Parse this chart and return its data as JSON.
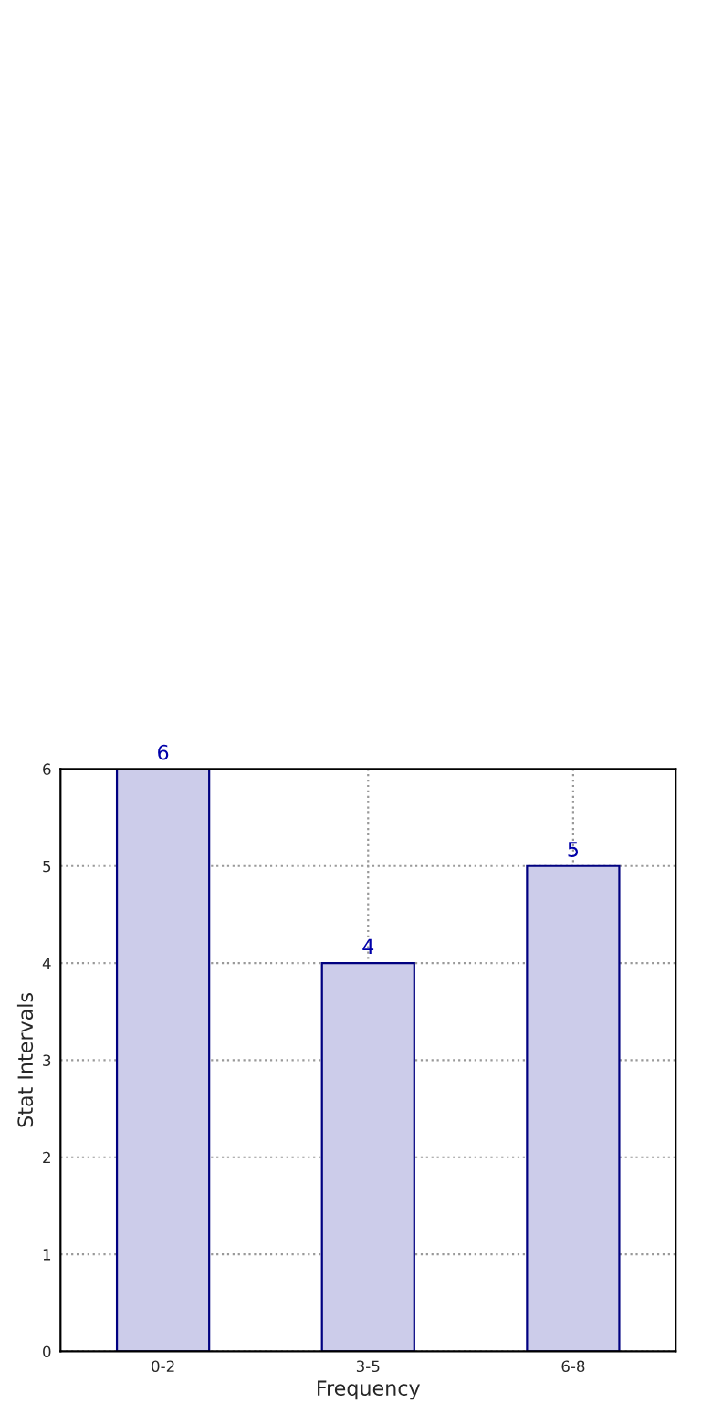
{
  "chart_data": {
    "type": "bar",
    "xlabel": "Frequency",
    "ylabel": "Stat Intervals",
    "categories": [
      "0-2",
      "3-5",
      "6-8"
    ],
    "series": [
      {
        "color": "#ccccea",
        "values": [
          6,
          4,
          5
        ]
      }
    ],
    "ylim": [
      0,
      6
    ],
    "yticks": [
      0,
      1,
      2,
      3,
      4,
      5,
      6
    ],
    "grid": true,
    "data_labels": true
  }
}
